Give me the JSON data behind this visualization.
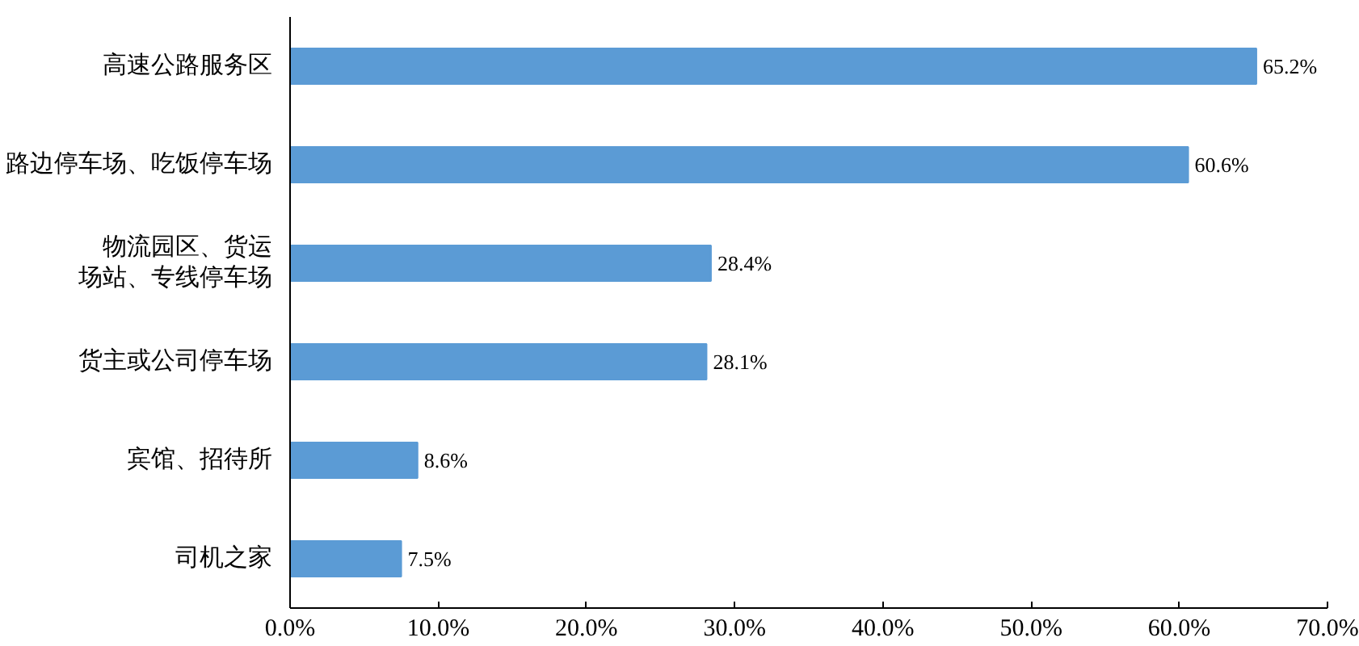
{
  "chart_data": {
    "type": "bar",
    "orientation": "horizontal",
    "categories": [
      "高速公路服务区",
      "路边停车场、吃饭停车场",
      "物流园区、货运场站、专线停车场",
      "货主或公司停车场",
      "宾馆、招待所",
      "司机之家"
    ],
    "values": [
      65.2,
      60.6,
      28.4,
      28.1,
      8.6,
      7.5
    ],
    "value_labels": [
      "65.2%",
      "60.6%",
      "28.4%",
      "28.1%",
      "8.6%",
      "7.5%"
    ],
    "color": "#5b9bd5",
    "xlim": [
      0,
      70
    ],
    "xticks": [
      {
        "value": 0,
        "label": "0.0%"
      },
      {
        "value": 10,
        "label": "10.0%"
      },
      {
        "value": 20,
        "label": "20.0%"
      },
      {
        "value": 30,
        "label": "30.0%"
      },
      {
        "value": 40,
        "label": "40.0%"
      },
      {
        "value": 50,
        "label": "50.0%"
      },
      {
        "value": 60,
        "label": "60.0%"
      },
      {
        "value": 70,
        "label": "70.0%"
      }
    ],
    "grid": false
  }
}
